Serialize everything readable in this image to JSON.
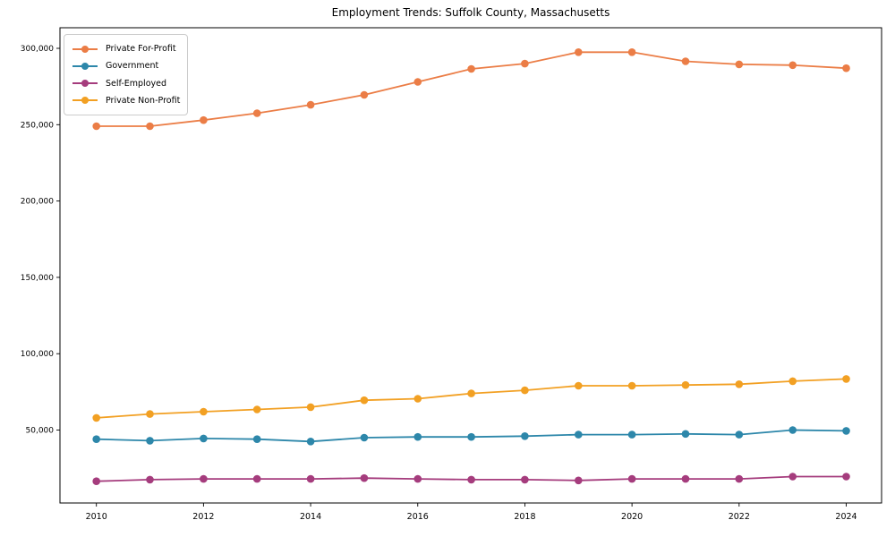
{
  "title": "Employment Trends: Suffolk County, Massachusetts",
  "chart_data": {
    "type": "line",
    "title": "Employment Trends: Suffolk County, Massachusetts",
    "xlabel": "",
    "ylabel": "",
    "grid": false,
    "legend_position": "upper-left",
    "x": [
      2010,
      2011,
      2012,
      2013,
      2014,
      2015,
      2016,
      2017,
      2018,
      2019,
      2020,
      2021,
      2022,
      2023,
      2024
    ],
    "series": [
      {
        "name": "Private For-Profit",
        "color": "#EB7D46",
        "values": [
          249000,
          249000,
          253000,
          257500,
          263000,
          269500,
          278000,
          286500,
          290000,
          297500,
          297500,
          291500,
          289500,
          289000,
          287000
        ]
      },
      {
        "name": "Government",
        "color": "#2D87AA",
        "values": [
          44000,
          43000,
          44500,
          44000,
          42500,
          45000,
          45500,
          45500,
          46000,
          47000,
          47000,
          47500,
          47000,
          50000,
          49500
        ]
      },
      {
        "name": "Self-Employed",
        "color": "#A53C7D",
        "values": [
          16500,
          17500,
          18000,
          18000,
          18000,
          18500,
          18000,
          17500,
          17500,
          17000,
          18000,
          18000,
          18000,
          19500,
          19500
        ]
      },
      {
        "name": "Private Non-Profit",
        "color": "#F2A023",
        "values": [
          58000,
          60500,
          62000,
          63500,
          65000,
          69500,
          70500,
          74000,
          76000,
          79000,
          79000,
          79500,
          80000,
          82000,
          83500
        ]
      }
    ],
    "xticks": [
      2010,
      2012,
      2014,
      2016,
      2018,
      2020,
      2022,
      2024
    ],
    "xtick_labels": [
      "2010",
      "2012",
      "2014",
      "2016",
      "2018",
      "2020",
      "2022",
      "2024"
    ],
    "yticks": [
      50000,
      100000,
      150000,
      200000,
      250000,
      300000
    ],
    "ytick_labels": [
      "50,000",
      "100,000",
      "150,000",
      "200,000",
      "250,000",
      "300,000"
    ],
    "xlim": [
      2009.32,
      2024.66
    ],
    "ylim": [
      2230,
      313480
    ]
  }
}
